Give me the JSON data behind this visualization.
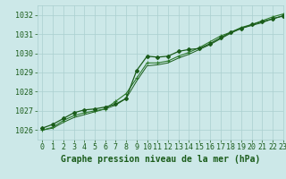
{
  "xlabel": "Graphe pression niveau de la mer (hPa)",
  "ylim": [
    1025.5,
    1032.5
  ],
  "xlim": [
    -0.5,
    23
  ],
  "yticks": [
    1026,
    1027,
    1028,
    1029,
    1030,
    1031,
    1032
  ],
  "xticks": [
    0,
    1,
    2,
    3,
    4,
    5,
    6,
    7,
    8,
    9,
    10,
    11,
    12,
    13,
    14,
    15,
    16,
    17,
    18,
    19,
    20,
    21,
    22,
    23
  ],
  "bg_color": "#cce8e8",
  "grid_color": "#aacfcf",
  "line_color_dark": "#1a5c1a",
  "line_color_mid": "#2d7a2d",
  "series1": [
    1026.1,
    1026.3,
    1026.6,
    1026.9,
    1027.05,
    1027.1,
    1027.2,
    1027.35,
    1027.65,
    1029.1,
    1029.85,
    1029.8,
    1029.85,
    1030.1,
    1030.2,
    1030.25,
    1030.5,
    1030.8,
    1031.1,
    1031.3,
    1031.5,
    1031.65,
    1031.8,
    1031.95
  ],
  "series2": [
    1026.0,
    1026.15,
    1026.5,
    1026.75,
    1026.9,
    1027.0,
    1027.1,
    1027.5,
    1027.9,
    1028.7,
    1029.5,
    1029.5,
    1029.6,
    1029.85,
    1030.05,
    1030.3,
    1030.6,
    1030.9,
    1031.1,
    1031.35,
    1031.5,
    1031.7,
    1031.9,
    1032.05
  ],
  "series3": [
    1026.0,
    1026.1,
    1026.4,
    1026.65,
    1026.8,
    1026.95,
    1027.1,
    1027.3,
    1027.65,
    1028.55,
    1029.35,
    1029.4,
    1029.5,
    1029.75,
    1029.95,
    1030.2,
    1030.45,
    1030.75,
    1031.05,
    1031.3,
    1031.45,
    1031.6,
    1031.8,
    1031.95
  ],
  "font_color": "#1a5c1a",
  "tick_fontsize": 6,
  "label_fontsize": 7
}
